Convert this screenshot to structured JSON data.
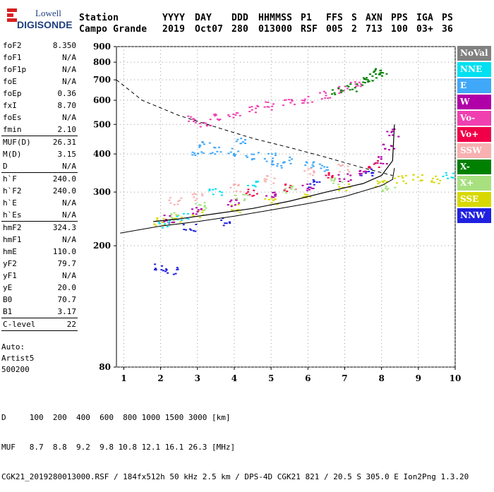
{
  "logo": {
    "line1": "Lowell",
    "line2": "DIGISONDE"
  },
  "header": {
    "labels": [
      "Station",
      "YYYY",
      "DAY",
      "DDD",
      "HHMMSS",
      "P1",
      "FFS",
      "S",
      "AXN",
      "PPS",
      "IGA",
      "PS"
    ],
    "values": [
      "Campo Grande",
      "2019",
      "Oct07",
      "280",
      "013000",
      "RSF",
      "005",
      "2",
      "713",
      "100",
      "03+",
      "36"
    ]
  },
  "params": [
    {
      "k": "foF2",
      "v": "8.350"
    },
    {
      "k": "foF1",
      "v": "N/A"
    },
    {
      "k": "foF1p",
      "v": "N/A"
    },
    {
      "k": "foE",
      "v": "N/A"
    },
    {
      "k": "foEp",
      "v": "0.36"
    },
    {
      "k": "fxI",
      "v": "8.70"
    },
    {
      "k": "foEs",
      "v": "N/A"
    },
    {
      "k": "fmin",
      "v": "2.10"
    },
    {
      "sep": true
    },
    {
      "k": "MUF(D)",
      "v": "26.31"
    },
    {
      "k": "M(D)",
      "v": "3.15"
    },
    {
      "k": "D",
      "v": "N/A"
    },
    {
      "sep": true
    },
    {
      "k": "h`F",
      "v": "240.0"
    },
    {
      "k": "h`F2",
      "v": "240.0"
    },
    {
      "k": "h`E",
      "v": "N/A"
    },
    {
      "k": "h`Es",
      "v": "N/A"
    },
    {
      "sep": true
    },
    {
      "k": "hmF2",
      "v": "324.3"
    },
    {
      "k": "hmF1",
      "v": "N/A"
    },
    {
      "k": "hmE",
      "v": "110.0"
    },
    {
      "k": "yF2",
      "v": "79.7"
    },
    {
      "k": "yF1",
      "v": "N/A"
    },
    {
      "k": "yE",
      "v": "20.0"
    },
    {
      "k": "B0",
      "v": "70.7"
    },
    {
      "k": "B1",
      "v": "3.17"
    },
    {
      "sep": true
    },
    {
      "k": "C-level",
      "v": "22"
    },
    {
      "sep": true
    }
  ],
  "auto": {
    "line1": "Auto:",
    "line2": "Artist5",
    "line3": "500200"
  },
  "legend": [
    {
      "label": "NoVal",
      "color": "#808080"
    },
    {
      "label": "NNE",
      "color": "#00e0f0"
    },
    {
      "label": "E",
      "color": "#40a8f8"
    },
    {
      "label": "W",
      "color": "#b000a8"
    },
    {
      "label": "Vo-",
      "color": "#f040b0"
    },
    {
      "label": "Vo+",
      "color": "#f00048"
    },
    {
      "label": "SSW",
      "color": "#f8b0b0"
    },
    {
      "label": "X-",
      "color": "#008000"
    },
    {
      "label": "X+",
      "color": "#a8e080"
    },
    {
      "label": "SSE",
      "color": "#d8d800"
    },
    {
      "label": "NNW",
      "color": "#2020e0"
    }
  ],
  "footer": {
    "line1": "D     100  200  400  600  800 1000 1500 3000 [km]",
    "line2": "MUF   8.7  8.8  9.2  9.8 10.8 12.1 16.1 26.3 [MHz]",
    "line3": "CGK21_2019280013000.RSF / 184fx512h 50 kHz 2.5 km / DPS-4D CGK21 821 / 20.5 S 305.0 E Ion2Png 1.3.20"
  },
  "chart_data": {
    "type": "scatter",
    "title": "",
    "xlabel": "",
    "ylabel": "",
    "xlim": [
      0.8,
      10
    ],
    "ylim": [
      80,
      900
    ],
    "y_scale": "log",
    "xticks": [
      1,
      2,
      3,
      4,
      5,
      6,
      7,
      8,
      9,
      10
    ],
    "yticks": [
      80,
      200,
      300,
      400,
      500,
      600,
      700,
      800,
      900
    ],
    "grid": true,
    "legend_position": "right",
    "series": [
      {
        "name": "Vo-",
        "color": "#f040b0",
        "points": [
          [
            2.9,
            520
          ],
          [
            3.2,
            505
          ],
          [
            3.6,
            525
          ],
          [
            4.0,
            540
          ],
          [
            4.5,
            560
          ],
          [
            5.0,
            575
          ],
          [
            5.5,
            590
          ],
          [
            6.0,
            605
          ],
          [
            6.5,
            625
          ],
          [
            7.0,
            650
          ],
          [
            7.3,
            670
          ]
        ]
      },
      {
        "name": "X-",
        "color": "#008000",
        "points": [
          [
            7.5,
            690
          ],
          [
            7.7,
            710
          ],
          [
            7.9,
            735
          ],
          [
            8.0,
            750
          ],
          [
            7.2,
            660
          ],
          [
            6.8,
            640
          ]
        ]
      },
      {
        "name": "E",
        "color": "#40a8f8",
        "points": [
          [
            3.0,
            400
          ],
          [
            3.5,
            410
          ],
          [
            4.0,
            405
          ],
          [
            4.5,
            395
          ],
          [
            5.0,
            390
          ],
          [
            5.5,
            380
          ],
          [
            3.2,
            430
          ],
          [
            4.2,
            440
          ],
          [
            5.2,
            370
          ],
          [
            6.0,
            370
          ],
          [
            6.5,
            360
          ]
        ]
      },
      {
        "name": "SSE",
        "color": "#d8d800",
        "points": [
          [
            2.0,
            240
          ],
          [
            2.5,
            245
          ],
          [
            3.0,
            255
          ],
          [
            4.0,
            265
          ],
          [
            5.0,
            280
          ],
          [
            6.0,
            295
          ],
          [
            7.0,
            310
          ],
          [
            8.0,
            320
          ],
          [
            8.5,
            330
          ],
          [
            9.0,
            335
          ],
          [
            9.5,
            330
          ]
        ]
      },
      {
        "name": "W",
        "color": "#b000a8",
        "points": [
          [
            2.2,
            245
          ],
          [
            3.0,
            260
          ],
          [
            4.0,
            275
          ],
          [
            5.0,
            295
          ],
          [
            6.0,
            310
          ],
          [
            7.0,
            335
          ],
          [
            7.5,
            350
          ],
          [
            8.0,
            380
          ],
          [
            8.2,
            420
          ],
          [
            8.3,
            470
          ]
        ]
      },
      {
        "name": "SSW",
        "color": "#f8b0b0",
        "points": [
          [
            2.4,
            280
          ],
          [
            3.0,
            290
          ],
          [
            4.0,
            310
          ],
          [
            5.0,
            330
          ],
          [
            6.0,
            350
          ],
          [
            7.0,
            360
          ]
        ]
      },
      {
        "name": "NNE",
        "color": "#00e0f0",
        "points": [
          [
            2.1,
            235
          ],
          [
            2.6,
            250
          ],
          [
            3.5,
            300
          ],
          [
            4.5,
            320
          ],
          [
            9.8,
            340
          ]
        ]
      },
      {
        "name": "Vo+",
        "color": "#f00048",
        "points": [
          [
            4.5,
            300
          ],
          [
            5.5,
            310
          ],
          [
            6.5,
            340
          ],
          [
            7.8,
            370
          ]
        ]
      },
      {
        "name": "X+",
        "color": "#a8e080",
        "points": [
          [
            2.3,
            250
          ],
          [
            3.1,
            270
          ],
          [
            4.2,
            290
          ],
          [
            5.5,
            305
          ],
          [
            6.8,
            325
          ],
          [
            8.2,
            310
          ]
        ]
      },
      {
        "name": "NNW",
        "color": "#2020e0",
        "points": [
          [
            2.0,
            170
          ],
          [
            2.3,
            165
          ],
          [
            2.8,
            230
          ],
          [
            3.8,
            240
          ],
          [
            6.2,
            320
          ],
          [
            7.6,
            350
          ]
        ]
      }
    ],
    "curves": {
      "dashed": [
        [
          0.8,
          700
        ],
        [
          1.5,
          600
        ],
        [
          2.5,
          535
        ],
        [
          3.5,
          490
        ],
        [
          4.5,
          450
        ],
        [
          5.5,
          420
        ],
        [
          6.5,
          390
        ],
        [
          7.5,
          360
        ],
        [
          8.3,
          340
        ]
      ],
      "solid_trace": [
        [
          1.8,
          240
        ],
        [
          2.5,
          245
        ],
        [
          3.5,
          255
        ],
        [
          4.5,
          265
        ],
        [
          5.5,
          280
        ],
        [
          6.5,
          300
        ],
        [
          7.5,
          320
        ],
        [
          8.0,
          340
        ],
        [
          8.3,
          380
        ],
        [
          8.35,
          500
        ]
      ],
      "model_lower": [
        [
          0.9,
          220
        ],
        [
          2.0,
          232
        ],
        [
          3.0,
          240
        ],
        [
          4.0,
          250
        ],
        [
          5.0,
          262
        ],
        [
          6.0,
          275
        ],
        [
          7.0,
          290
        ],
        [
          8.0,
          315
        ],
        [
          8.3,
          330
        ],
        [
          8.35,
          360
        ]
      ]
    }
  }
}
